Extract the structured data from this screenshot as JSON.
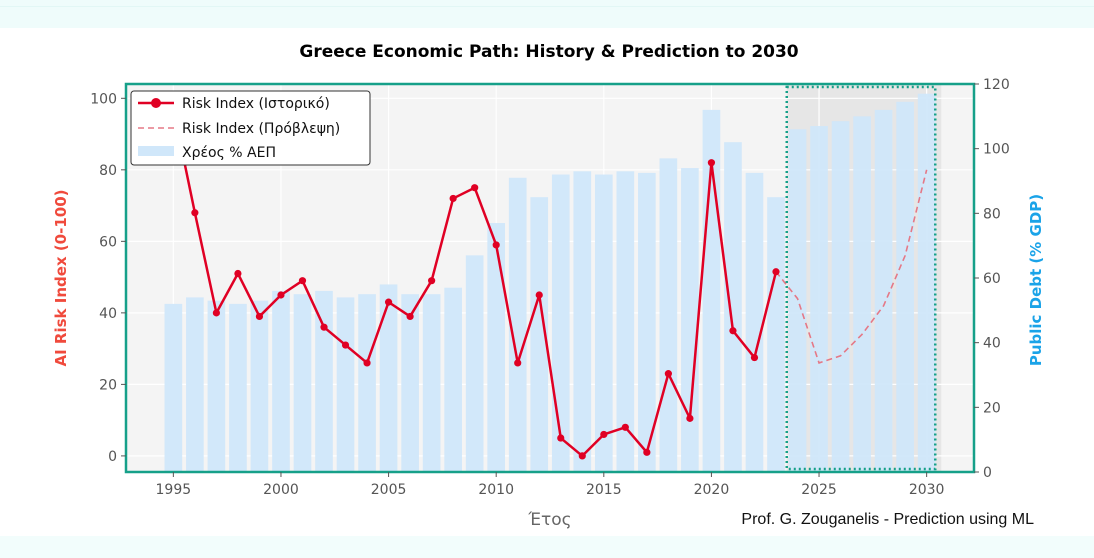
{
  "footer_text": "Prof. G. Zouganelis - Prediction using ML",
  "chart_data": {
    "type": "bar+line",
    "title": "Greece Economic Path: History & Prediction to 2030",
    "xlabel": "Έτος",
    "ylabel_left": "AI Risk Index (0-100)",
    "ylabel_right": "Public Debt (% GDP)",
    "xlim": [
      1992.8,
      2032.2
    ],
    "ylim_left": [
      -4.5,
      104
    ],
    "ylim_right": [
      0,
      120
    ],
    "x_ticks": [
      1995,
      2000,
      2005,
      2010,
      2015,
      2020,
      2025,
      2030
    ],
    "y_ticks_left": [
      0,
      20,
      40,
      60,
      80,
      100
    ],
    "y_ticks_right": [
      0,
      20,
      40,
      60,
      80,
      100,
      120
    ],
    "grid": true,
    "legend_position": "top-left",
    "highlight_region": [
      2023.5,
      2030.4
    ],
    "colors": {
      "history": "#e00024",
      "forecast": "#e57886",
      "debt_bars": "#d0e7fa",
      "frame": "#16a089",
      "left_axis_label": "#f04a3c",
      "right_axis_label": "#1aa3e8"
    },
    "series": [
      {
        "name": "Risk Index (Ιστορικό)",
        "axis": "left",
        "style": "solid-line-markers",
        "x": [
          1995,
          1996,
          1997,
          1998,
          1999,
          2000,
          2001,
          2002,
          2003,
          2004,
          2005,
          2006,
          2007,
          2008,
          2009,
          2010,
          2011,
          2012,
          2013,
          2014,
          2015,
          2016,
          2017,
          2018,
          2019,
          2020,
          2021,
          2022,
          2023
        ],
        "values": [
          97,
          68,
          40,
          51,
          39,
          45,
          49,
          36,
          31,
          26,
          43,
          39,
          49,
          72,
          75,
          59,
          26,
          45,
          5,
          0,
          6,
          8,
          1,
          23,
          10.5,
          82,
          35,
          27.5,
          51.5
        ]
      },
      {
        "name": "Risk Index (Πρόβλεψη)",
        "axis": "left",
        "style": "dashed-line",
        "x": [
          2023,
          2024,
          2025,
          2026,
          2027,
          2028,
          2029,
          2030
        ],
        "values": [
          51.5,
          44,
          26,
          28,
          34,
          42,
          56,
          80
        ]
      },
      {
        "name": "Χρέος % ΑΕΠ",
        "axis": "right",
        "style": "bar",
        "x": [
          1995,
          1996,
          1997,
          1998,
          1999,
          2000,
          2001,
          2002,
          2003,
          2004,
          2005,
          2006,
          2007,
          2008,
          2009,
          2010,
          2011,
          2012,
          2013,
          2014,
          2015,
          2016,
          2017,
          2018,
          2019,
          2020,
          2021,
          2022,
          2023,
          2024,
          2025,
          2026,
          2027,
          2028,
          2029,
          2030
        ],
        "values": [
          52,
          54,
          53,
          52,
          53,
          56,
          55,
          56,
          54,
          55,
          58,
          55,
          55,
          57,
          67,
          77,
          91,
          85,
          92,
          93,
          92,
          93,
          92.5,
          97,
          94,
          112,
          102,
          92.5,
          85,
          106,
          107,
          108.5,
          110,
          112,
          114.5,
          117
        ]
      }
    ]
  }
}
